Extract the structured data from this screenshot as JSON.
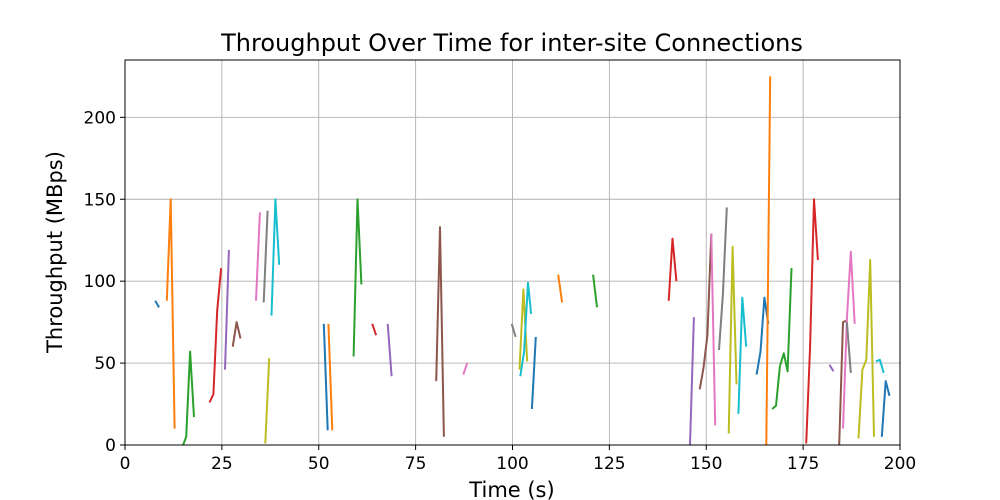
{
  "chart_data": {
    "type": "line",
    "title": "Throughput Over Time for inter-site Connections",
    "xlabel": "Time (s)",
    "ylabel": "Throughput (MBps)",
    "xlim": [
      0,
      200
    ],
    "ylim": [
      0,
      235
    ],
    "xticks": [
      0,
      25,
      50,
      75,
      100,
      125,
      150,
      175,
      200
    ],
    "yticks": [
      0,
      50,
      100,
      150,
      200
    ],
    "grid": true,
    "legend": "none",
    "palette": [
      "#1f77b4",
      "#ff7f0e",
      "#2ca02c",
      "#d62728",
      "#9467bd",
      "#8c564b",
      "#e377c2",
      "#7f7f7f",
      "#bcbd22",
      "#17becf"
    ],
    "series": [
      {
        "x": [
          7.8,
          8.8
        ],
        "y": [
          88,
          84
        ]
      },
      {
        "x": [
          10.8,
          11.8,
          12.8
        ],
        "y": [
          88,
          150,
          10
        ]
      },
      {
        "x": [
          15.0,
          15.8,
          16.8,
          17.8
        ],
        "y": [
          0,
          5,
          57,
          17
        ]
      },
      {
        "x": [
          21.8,
          22.8,
          23.8,
          24.8
        ],
        "y": [
          26,
          31,
          82,
          108
        ]
      },
      {
        "x": [
          25.8,
          26.8
        ],
        "y": [
          46,
          119
        ]
      },
      {
        "x": [
          27.8,
          28.8,
          29.8
        ],
        "y": [
          60,
          75,
          65
        ]
      },
      {
        "x": [
          33.8,
          34.8
        ],
        "y": [
          88,
          142
        ]
      },
      {
        "x": [
          35.8,
          36.8
        ],
        "y": [
          87,
          143
        ]
      },
      {
        "x": [
          36.2,
          37.2
        ],
        "y": [
          1,
          53
        ]
      },
      {
        "x": [
          37.8,
          38.8,
          39.8
        ],
        "y": [
          79,
          150,
          110
        ]
      },
      {
        "x": [
          51.3,
          52.3
        ],
        "y": [
          74,
          9
        ]
      },
      {
        "x": [
          52.5,
          53.5
        ],
        "y": [
          74,
          9
        ]
      },
      {
        "x": [
          59.0,
          60.0,
          61.0
        ],
        "y": [
          54,
          150,
          98
        ]
      },
      {
        "x": [
          63.8,
          64.8
        ],
        "y": [
          74,
          67
        ]
      },
      {
        "x": [
          67.8,
          68.8
        ],
        "y": [
          74,
          42
        ]
      },
      {
        "x": [
          80.3,
          81.3,
          82.3
        ],
        "y": [
          39,
          133,
          5
        ]
      },
      {
        "x": [
          87.3,
          88.3
        ],
        "y": [
          43,
          50
        ]
      },
      {
        "x": [
          99.8,
          100.8
        ],
        "y": [
          74,
          66
        ]
      },
      {
        "x": [
          101.8,
          102.8,
          103.8
        ],
        "y": [
          46,
          95,
          51
        ]
      },
      {
        "x": [
          102.0,
          103.0,
          104.0,
          104.8
        ],
        "y": [
          42,
          57,
          99,
          80
        ]
      },
      {
        "x": [
          105.0,
          106.0
        ],
        "y": [
          22,
          66
        ]
      },
      {
        "x": [
          111.8,
          112.8
        ],
        "y": [
          104,
          87
        ]
      },
      {
        "x": [
          120.8,
          121.8
        ],
        "y": [
          104,
          84
        ]
      },
      {
        "x": [
          140.3,
          141.3,
          142.3
        ],
        "y": [
          88,
          126,
          100
        ]
      },
      {
        "x": [
          145.8,
          146.8
        ],
        "y": [
          0,
          78
        ]
      },
      {
        "x": [
          148.3,
          149.3,
          150.3,
          151.3
        ],
        "y": [
          34,
          47,
          67,
          129
        ]
      },
      {
        "x": [
          151.3,
          152.3
        ],
        "y": [
          129,
          12
        ]
      },
      {
        "x": [
          153.3,
          154.3,
          155.3
        ],
        "y": [
          58,
          92,
          145
        ]
      },
      {
        "x": [
          155.8,
          156.8,
          157.8
        ],
        "y": [
          7,
          121,
          37
        ]
      },
      {
        "x": [
          158.3,
          159.3,
          160.3
        ],
        "y": [
          19,
          90,
          60
        ]
      },
      {
        "x": [
          163.0,
          164.0,
          165.0,
          166.0
        ],
        "y": [
          43,
          57,
          90,
          74
        ]
      },
      {
        "x": [
          165.5,
          166.5
        ],
        "y": [
          0,
          225
        ]
      },
      {
        "x": [
          167.0,
          168.0,
          169.0,
          170.0,
          171.0,
          172.0
        ],
        "y": [
          22,
          24,
          48,
          56,
          45,
          108
        ]
      },
      {
        "x": [
          175.8,
          176.8,
          177.8,
          178.8
        ],
        "y": [
          1,
          60,
          150,
          113
        ]
      },
      {
        "x": [
          181.8,
          182.8
        ],
        "y": [
          49,
          45
        ]
      },
      {
        "x": [
          184.3,
          185.3,
          186.3
        ],
        "y": [
          0,
          75,
          76
        ]
      },
      {
        "x": [
          185.3,
          186.3,
          187.3,
          188.3
        ],
        "y": [
          10,
          77,
          118,
          74
        ]
      },
      {
        "x": [
          186.3,
          187.3
        ],
        "y": [
          75,
          44
        ]
      },
      {
        "x": [
          189.3,
          190.3,
          191.3,
          192.3,
          193.3
        ],
        "y": [
          4,
          46,
          52,
          113,
          5
        ]
      },
      {
        "x": [
          193.8,
          194.8,
          195.8
        ],
        "y": [
          51,
          52,
          44
        ]
      },
      {
        "x": [
          195.3,
          196.3,
          197.3
        ],
        "y": [
          5,
          39,
          30
        ]
      }
    ]
  }
}
